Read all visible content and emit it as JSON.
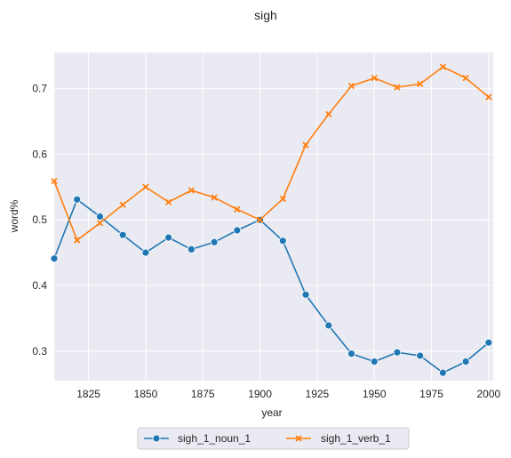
{
  "chart_data": {
    "type": "line",
    "title": "sigh",
    "xlabel": "year",
    "ylabel": "word%",
    "xlim": [
      1810,
      2002
    ],
    "ylim": [
      0.255,
      0.755
    ],
    "xticks": [
      1825,
      1850,
      1875,
      1900,
      1925,
      1950,
      1975,
      2000
    ],
    "yticks": [
      0.3,
      0.4,
      0.5,
      0.6,
      0.7
    ],
    "grid": true,
    "legend_position": "bottom-center",
    "x": [
      1810,
      1820,
      1830,
      1840,
      1850,
      1860,
      1870,
      1880,
      1890,
      1900,
      1910,
      1920,
      1930,
      1940,
      1950,
      1960,
      1970,
      1980,
      1990,
      2000
    ],
    "series": [
      {
        "name": "sigh_1_noun_1",
        "color": "#1f77b4",
        "marker": "circle",
        "values": [
          0.441,
          0.531,
          0.505,
          0.477,
          0.45,
          0.473,
          0.455,
          0.466,
          0.484,
          0.5,
          0.468,
          0.386,
          0.339,
          0.296,
          0.284,
          0.298,
          0.293,
          0.267,
          0.284,
          0.313
        ]
      },
      {
        "name": "sigh_1_verb_1",
        "color": "#ff7f0e",
        "marker": "x",
        "values": [
          0.559,
          0.469,
          0.495,
          0.523,
          0.55,
          0.527,
          0.545,
          0.534,
          0.516,
          0.5,
          0.532,
          0.614,
          0.661,
          0.704,
          0.716,
          0.702,
          0.707,
          0.733,
          0.716,
          0.687
        ]
      }
    ]
  }
}
